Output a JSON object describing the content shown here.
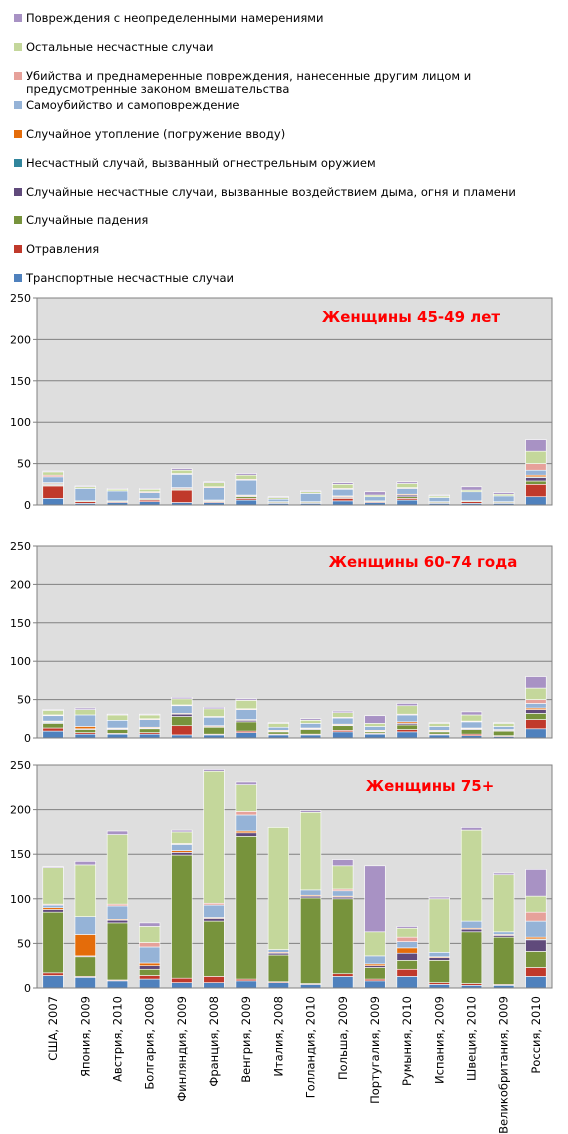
{
  "legend": {
    "items": [
      {
        "label": "Повреждения с неопределенными намерениями",
        "color": "#a892c4"
      },
      {
        "label": "Остальные несчастные случаи",
        "color": "#c4d79b"
      },
      {
        "label": "Убийства и преднамеренные повреждения, нанесенные другим лицом и предусмотренные законом вмешательства",
        "color": "#e6a19a"
      },
      {
        "label": "Самоубийство и самоповреждение",
        "color": "#95b3d7"
      },
      {
        "label": "Случайное утопление (погружение вводу)",
        "color": "#e46c0a"
      },
      {
        "label": "Несчастный случай, вызванный огнестрельным оружием",
        "color": "#31859c"
      },
      {
        "label": "Случайные несчастные случаи, вызванные воздействием дыма, огня и пламени",
        "color": "#604a7b"
      },
      {
        "label": "Случайные падения",
        "color": "#77933c"
      },
      {
        "label": "Отравления",
        "color": "#c0392b"
      },
      {
        "label": "Транспортные несчастные случаи",
        "color": "#4f81bd"
      }
    ]
  },
  "chart_data": [
    {
      "type": "bar",
      "stacked": true,
      "title": "Женщины 45-49 лет",
      "title_color": "#ff0000",
      "ylim": [
        0,
        250
      ],
      "yticks": [
        0,
        50,
        100,
        150,
        200,
        250
      ],
      "grid": true,
      "categories": [
        "США, 2007",
        "Япония, 2009",
        "Австрия, 2010",
        "Болгария, 2008",
        "Финляндия, 2009",
        "Франция, 2008",
        "Венгрия, 2009",
        "Италия, 2008",
        "Голландия, 2010",
        "Польша, 2009",
        "Португалия, 2009",
        "Румыния, 2010",
        "Испания, 2009",
        "Швеция, 2010",
        "Великобритания, 2009",
        "Россия, 2010"
      ],
      "series": [
        {
          "name": "Транспортные несчастные случаи",
          "values": [
            8,
            2,
            3,
            4,
            3,
            3,
            6,
            2,
            2,
            5,
            3,
            6,
            2,
            2,
            2,
            10
          ]
        },
        {
          "name": "Отравления",
          "values": [
            15,
            2,
            1,
            2,
            15,
            1,
            2,
            1,
            1,
            3,
            1,
            2,
            1,
            2,
            1,
            15
          ]
        },
        {
          "name": "Случайные падения",
          "values": [
            1,
            1,
            1,
            1,
            1,
            1,
            2,
            1,
            1,
            1,
            1,
            2,
            1,
            1,
            1,
            4
          ]
        },
        {
          "name": "Случайные несчастные случаи, вызванные воздействием дыма, огня и пламени",
          "values": [
            1,
            0,
            0,
            1,
            1,
            1,
            1,
            0,
            0,
            1,
            0,
            2,
            0,
            0,
            0,
            4
          ]
        },
        {
          "name": "Несчастный случай, вызванный огнестрельным оружием",
          "values": [
            1,
            0,
            0,
            0,
            0,
            0,
            0,
            0,
            0,
            0,
            0,
            0,
            0,
            0,
            0,
            1
          ]
        },
        {
          "name": "Случайное утопление (погружение вводу)",
          "values": [
            1,
            0,
            0,
            0,
            1,
            0,
            1,
            0,
            0,
            1,
            0,
            1,
            0,
            0,
            0,
            2
          ]
        },
        {
          "name": "Самоубийство и самоповреждение",
          "values": [
            7,
            15,
            12,
            7,
            16,
            15,
            18,
            3,
            10,
            8,
            5,
            7,
            5,
            11,
            7,
            6
          ]
        },
        {
          "name": "Убийства и преднамеренные повреждения, нанесенные другим лицом и предусмотренные законом вмешательства",
          "values": [
            2,
            0,
            0,
            1,
            1,
            1,
            1,
            0,
            0,
            1,
            0,
            1,
            0,
            0,
            0,
            8
          ]
        },
        {
          "name": "Остальные несчастные случаи",
          "values": [
            4,
            2,
            2,
            3,
            4,
            5,
            5,
            2,
            2,
            5,
            2,
            5,
            2,
            2,
            2,
            15
          ]
        },
        {
          "name": "Повреждения с неопределенными намерениями",
          "values": [
            1,
            1,
            1,
            1,
            2,
            1,
            2,
            1,
            1,
            2,
            4,
            2,
            1,
            4,
            2,
            14
          ]
        }
      ]
    },
    {
      "type": "bar",
      "stacked": true,
      "title": "Женщины 60-74 года",
      "title_color": "#ff0000",
      "ylim": [
        0,
        250
      ],
      "yticks": [
        0,
        50,
        100,
        150,
        200,
        250
      ],
      "grid": true,
      "categories": [
        "США, 2007",
        "Япония, 2009",
        "Австрия, 2010",
        "Болгария, 2008",
        "Финляндия, 2009",
        "Франция, 2008",
        "Венгрия, 2009",
        "Италия, 2008",
        "Голландия, 2010",
        "Польша, 2009",
        "Португалия, 2009",
        "Румыния, 2010",
        "Испания, 2009",
        "Швеция, 2010",
        "Великобритания, 2009",
        "Россия, 2010"
      ],
      "series": [
        {
          "name": "Транспортные несчастные случаи",
          "values": [
            9,
            5,
            5,
            5,
            4,
            4,
            7,
            4,
            4,
            8,
            5,
            8,
            4,
            3,
            2,
            12
          ]
        },
        {
          "name": "Отравления",
          "values": [
            4,
            2,
            1,
            2,
            12,
            1,
            2,
            1,
            1,
            2,
            1,
            3,
            1,
            2,
            1,
            12
          ]
        },
        {
          "name": "Случайные падения",
          "values": [
            6,
            4,
            5,
            5,
            12,
            9,
            12,
            3,
            6,
            6,
            2,
            6,
            3,
            6,
            6,
            8
          ]
        },
        {
          "name": "Случайные несчастные случаи, вызванные воздействием дыма, огня и пламени",
          "values": [
            1,
            1,
            1,
            1,
            3,
            1,
            2,
            1,
            1,
            1,
            1,
            2,
            1,
            1,
            1,
            5
          ]
        },
        {
          "name": "Несчастный случай, вызванный огнестрельным оружием",
          "values": [
            1,
            0,
            0,
            0,
            0,
            0,
            0,
            0,
            0,
            0,
            0,
            0,
            0,
            0,
            0,
            0
          ]
        },
        {
          "name": "Случайное утопление (погружение вводу)",
          "values": [
            1,
            3,
            1,
            1,
            1,
            1,
            1,
            1,
            1,
            1,
            1,
            2,
            1,
            1,
            1,
            2
          ]
        },
        {
          "name": "Самоубийство и самоповреждение",
          "values": [
            7,
            15,
            10,
            10,
            10,
            11,
            13,
            4,
            6,
            8,
            5,
            9,
            5,
            8,
            4,
            6
          ]
        },
        {
          "name": "Убийства и преднамеренные повреждения, нанесенные другим лицом и предусмотренные законом вмешательства",
          "values": [
            1,
            0,
            0,
            1,
            1,
            1,
            1,
            0,
            0,
            1,
            0,
            1,
            0,
            1,
            0,
            5
          ]
        },
        {
          "name": "Остальные несчастные случаи",
          "values": [
            6,
            7,
            7,
            5,
            8,
            10,
            11,
            5,
            4,
            6,
            4,
            11,
            4,
            8,
            4,
            15
          ]
        },
        {
          "name": "Повреждения с неопределенными намерениями",
          "values": [
            1,
            2,
            1,
            1,
            2,
            2,
            2,
            1,
            2,
            2,
            10,
            3,
            1,
            4,
            1,
            15
          ]
        }
      ]
    },
    {
      "type": "bar",
      "stacked": true,
      "title": "Женщины 75+",
      "title_color": "#ff0000",
      "ylim": [
        0,
        250
      ],
      "yticks": [
        0,
        50,
        100,
        150,
        200,
        250
      ],
      "grid": true,
      "categories": [
        "США, 2007",
        "Япония, 2009",
        "Австрия, 2010",
        "Болгария, 2008",
        "Финляндия, 2009",
        "Франция, 2008",
        "Венгрия, 2009",
        "Италия, 2008",
        "Голландия, 2010",
        "Польша, 2009",
        "Португалия, 2009",
        "Румыния, 2010",
        "Испания, 2009",
        "Швеция, 2010",
        "Великобритания, 2009",
        "Россия, 2010"
      ],
      "series": [
        {
          "name": "Транспортные несчастные случаи",
          "values": [
            14,
            12,
            8,
            10,
            6,
            6,
            8,
            6,
            4,
            13,
            8,
            13,
            4,
            3,
            3,
            13
          ]
        },
        {
          "name": "Отравления",
          "values": [
            3,
            1,
            1,
            4,
            5,
            7,
            2,
            1,
            1,
            3,
            2,
            8,
            2,
            2,
            1,
            10
          ]
        },
        {
          "name": "Случайные падения",
          "values": [
            68,
            22,
            64,
            7,
            138,
            62,
            160,
            30,
            96,
            84,
            13,
            10,
            25,
            58,
            53,
            18
          ]
        },
        {
          "name": "Случайные несчастные случаи, вызванные воздействием дыма, огня и пламени",
          "values": [
            3,
            1,
            3,
            4,
            3,
            3,
            4,
            2,
            2,
            2,
            2,
            8,
            3,
            3,
            2,
            13
          ]
        },
        {
          "name": "Несчастный случай, вызванный огнестрельным оружием",
          "values": [
            0,
            0,
            0,
            0,
            0,
            0,
            0,
            0,
            0,
            0,
            0,
            0,
            0,
            0,
            0,
            1
          ]
        },
        {
          "name": "Случайное утопление (погружение вводу)",
          "values": [
            2,
            24,
            1,
            3,
            2,
            1,
            2,
            1,
            1,
            1,
            2,
            6,
            1,
            1,
            1,
            2
          ]
        },
        {
          "name": "Самоубийство и самоповреждение",
          "values": [
            3,
            20,
            15,
            18,
            7,
            14,
            18,
            3,
            6,
            6,
            9,
            7,
            5,
            8,
            3,
            18
          ]
        },
        {
          "name": "Убийства и преднамеренные повреждения, нанесенные другим лицом и предусмотренные законом вмешательства",
          "values": [
            1,
            0,
            2,
            5,
            1,
            2,
            4,
            0,
            0,
            2,
            0,
            5,
            0,
            0,
            0,
            10
          ]
        },
        {
          "name": "Остальные несчастные случаи",
          "values": [
            41,
            58,
            78,
            18,
            13,
            148,
            30,
            137,
            87,
            26,
            27,
            10,
            60,
            102,
            64,
            18
          ]
        },
        {
          "name": "Повреждения с неопределенными намерениями",
          "values": [
            1,
            4,
            4,
            4,
            2,
            2,
            3,
            0,
            2,
            7,
            74,
            2,
            2,
            3,
            2,
            30
          ]
        }
      ]
    }
  ]
}
